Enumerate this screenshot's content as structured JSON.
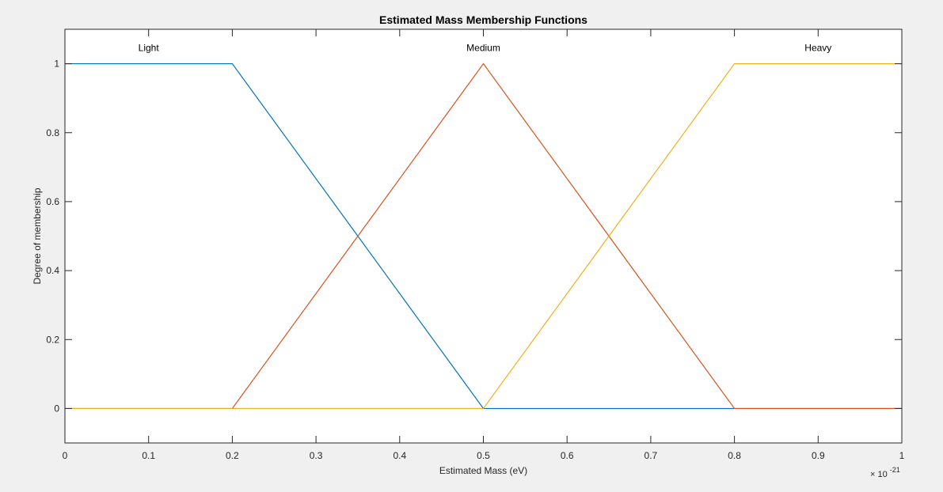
{
  "chart_data": {
    "type": "line",
    "title": "Estimated Mass Membership Functions",
    "xlabel": "Estimated Mass (eV)",
    "ylabel": "Degree of membership",
    "x_exponent_base": "× 10",
    "x_exponent_power": "-21",
    "xlim": [
      0,
      1
    ],
    "ylim": [
      -0.1,
      1.1
    ],
    "x_ticks": [
      0,
      0.1,
      0.2,
      0.3,
      0.4,
      0.5,
      0.6,
      0.7,
      0.8,
      0.9,
      1
    ],
    "x_tick_labels": [
      "0",
      "0.1",
      "0.2",
      "0.3",
      "0.4",
      "0.5",
      "0.6",
      "0.7",
      "0.8",
      "0.9",
      "1"
    ],
    "y_ticks": [
      0,
      0.2,
      0.4,
      0.6,
      0.8,
      1
    ],
    "y_tick_labels": [
      "0",
      "0.2",
      "0.4",
      "0.6",
      "0.8",
      "1"
    ],
    "grid": false,
    "series": [
      {
        "name": "Light",
        "color": "#0072bd",
        "label_x": 0.1,
        "points": [
          [
            0,
            1
          ],
          [
            0.2,
            1
          ],
          [
            0.5,
            0
          ],
          [
            1,
            0
          ]
        ]
      },
      {
        "name": "Medium",
        "color": "#d95319",
        "label_x": 0.5,
        "points": [
          [
            0,
            0
          ],
          [
            0.2,
            0
          ],
          [
            0.5,
            1
          ],
          [
            0.8,
            0
          ],
          [
            1,
            0
          ]
        ]
      },
      {
        "name": "Heavy",
        "color": "#edb120",
        "label_x": 0.9,
        "points": [
          [
            0,
            0
          ],
          [
            0.5,
            0
          ],
          [
            0.8,
            1
          ],
          [
            1,
            1
          ]
        ]
      }
    ]
  }
}
